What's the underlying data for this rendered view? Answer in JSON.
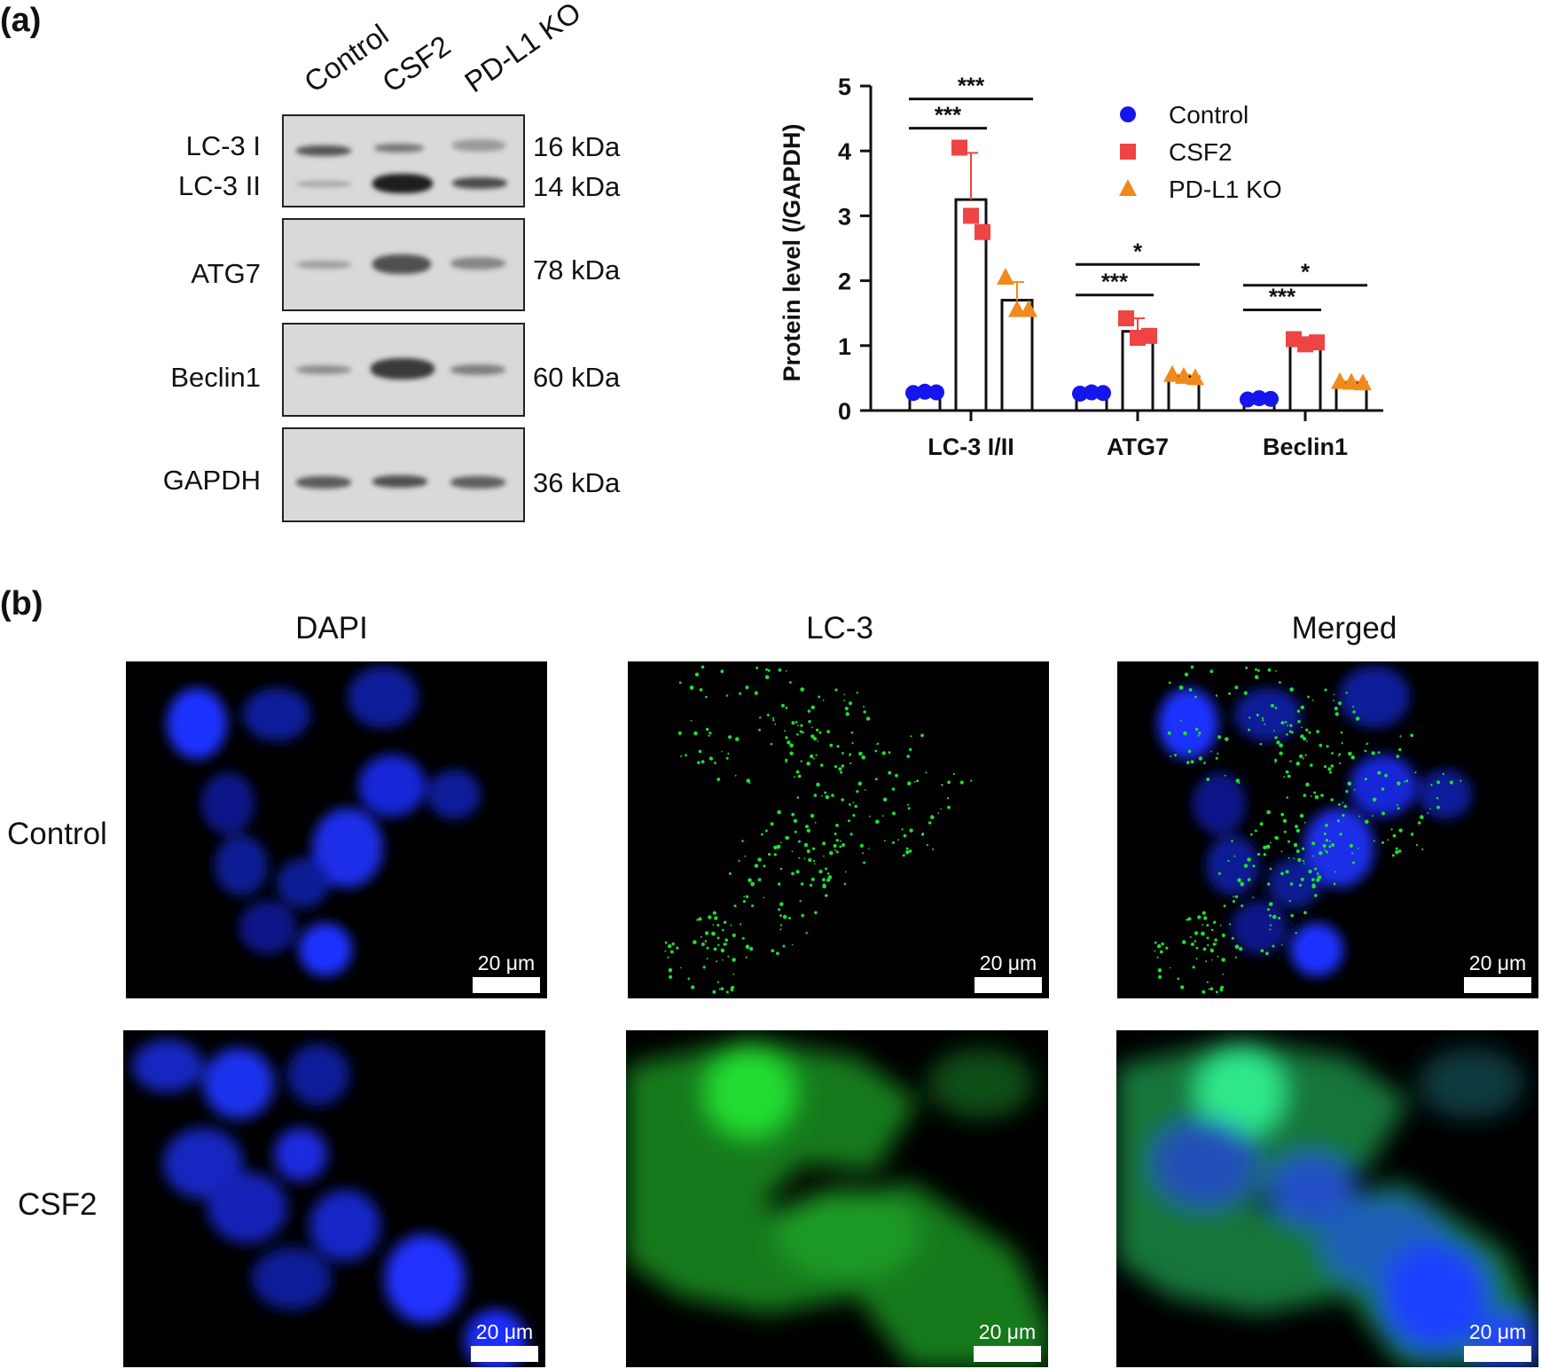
{
  "panel_a": {
    "label": "(a)",
    "lanes": [
      "Control",
      "CSF2",
      "PD-L1 KO"
    ],
    "blot_labels": [
      "LC-3 I",
      "LC-3 II",
      "ATG7",
      "Beclin1",
      "GAPDH"
    ],
    "kda_labels": [
      "16 kDa",
      "14 kDa",
      "78 kDa",
      "60 kDa",
      "36 kDa"
    ]
  },
  "panel_b": {
    "label": "(b)",
    "columns": [
      "DAPI",
      "LC-3",
      "Merged"
    ],
    "rows": [
      "Control",
      "CSF2"
    ],
    "scale_bar": "20 μm",
    "colors": {
      "dapi": "#1a2bff",
      "lc3": "#22dd33"
    }
  },
  "chart_data": {
    "type": "bar",
    "categories": [
      "LC-3 I/II",
      "ATG7",
      "Beclin1"
    ],
    "ylabel": "Protein level (/GAPDH)",
    "ylim": [
      0,
      5
    ],
    "yticks": [
      0,
      1,
      2,
      3,
      4,
      5
    ],
    "legend_position": "top-right",
    "series": [
      {
        "name": "Control",
        "color": "#1515ee",
        "marker": "circle",
        "values": [
          0.28,
          0.27,
          0.18
        ],
        "points": [
          [
            0.27,
            0.29,
            0.28
          ],
          [
            0.26,
            0.28,
            0.27
          ],
          [
            0.17,
            0.19,
            0.18
          ]
        ],
        "sd": [
          0.02,
          0.02,
          0.02
        ]
      },
      {
        "name": "CSF2",
        "color": "#ee4444",
        "marker": "square",
        "values": [
          3.25,
          1.22,
          1.05
        ],
        "points": [
          [
            4.05,
            3.0,
            2.75
          ],
          [
            1.42,
            1.12,
            1.15
          ],
          [
            1.1,
            1.02,
            1.05
          ]
        ],
        "sd": [
          0.72,
          0.2,
          0.05
        ]
      },
      {
        "name": "PD-L1 KO",
        "color": "#f08a1c",
        "marker": "triangle",
        "values": [
          1.7,
          0.52,
          0.43
        ],
        "points": [
          [
            2.05,
            1.55,
            1.55
          ],
          [
            0.55,
            0.52,
            0.5
          ],
          [
            0.44,
            0.43,
            0.42
          ]
        ],
        "sd": [
          0.28,
          0.03,
          0.02
        ]
      }
    ],
    "annotations": [
      {
        "text": "***",
        "category": 0,
        "from": 0,
        "to": 1,
        "y": 4.35
      },
      {
        "text": "***",
        "category": 0,
        "from": 0,
        "to": 2,
        "y": 4.8
      },
      {
        "text": "***",
        "category": 1,
        "from": 0,
        "to": 1,
        "y": 1.78
      },
      {
        "text": "*",
        "category": 1,
        "from": 0,
        "to": 2,
        "y": 2.25
      },
      {
        "text": "***",
        "category": 2,
        "from": 0,
        "to": 1,
        "y": 1.55
      },
      {
        "text": "*",
        "category": 2,
        "from": 0,
        "to": 2,
        "y": 1.93
      }
    ]
  }
}
